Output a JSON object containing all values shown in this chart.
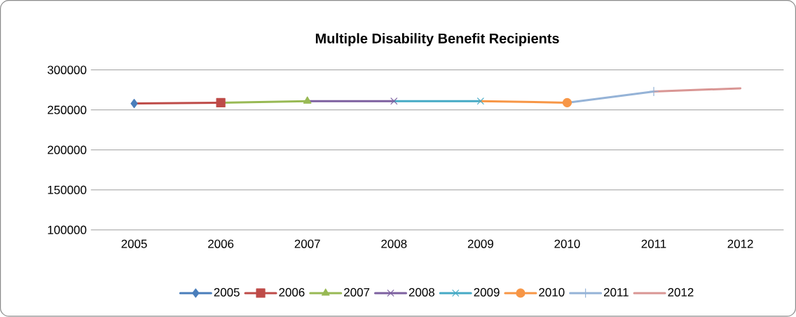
{
  "chart_data": {
    "type": "line",
    "title": "Multiple Disability Benefit Recipients",
    "xlim": [
      2004.5,
      2012.5
    ],
    "xticks": [
      2005,
      2006,
      2007,
      2008,
      2009,
      2010,
      2011,
      2012
    ],
    "ylim": [
      100000,
      300000
    ],
    "yticks": [
      100000,
      150000,
      200000,
      250000,
      300000
    ],
    "grid": "y",
    "legend": "bottom",
    "line_style": "solid",
    "series": [
      {
        "name": "2005",
        "color": "#4a7ebb",
        "marker": "diamond",
        "x": [
          2005
        ],
        "values": [
          258000
        ]
      },
      {
        "name": "2006",
        "color": "#be4b48",
        "marker": "square",
        "x": [
          2005,
          2006
        ],
        "values": [
          258000,
          259000
        ]
      },
      {
        "name": "2007",
        "color": "#98b954",
        "marker": "triangle",
        "x": [
          2006,
          2007
        ],
        "values": [
          259000,
          261000
        ]
      },
      {
        "name": "2008",
        "color": "#7d60a0",
        "marker": "cross",
        "x": [
          2007,
          2008
        ],
        "values": [
          261000,
          261000
        ]
      },
      {
        "name": "2009",
        "color": "#46aac5",
        "marker": "cross",
        "x": [
          2008,
          2009
        ],
        "values": [
          261000,
          261000
        ]
      },
      {
        "name": "2010",
        "color": "#f79646",
        "marker": "circle",
        "x": [
          2009,
          2010
        ],
        "values": [
          261000,
          259000
        ]
      },
      {
        "name": "2011",
        "color": "#95b3d7",
        "marker": "plus",
        "x": [
          2010,
          2011
        ],
        "values": [
          259000,
          273000
        ]
      },
      {
        "name": "2012",
        "color": "#d99694",
        "marker": "none",
        "x": [
          2011,
          2012
        ],
        "values": [
          273000,
          277000
        ]
      }
    ]
  }
}
